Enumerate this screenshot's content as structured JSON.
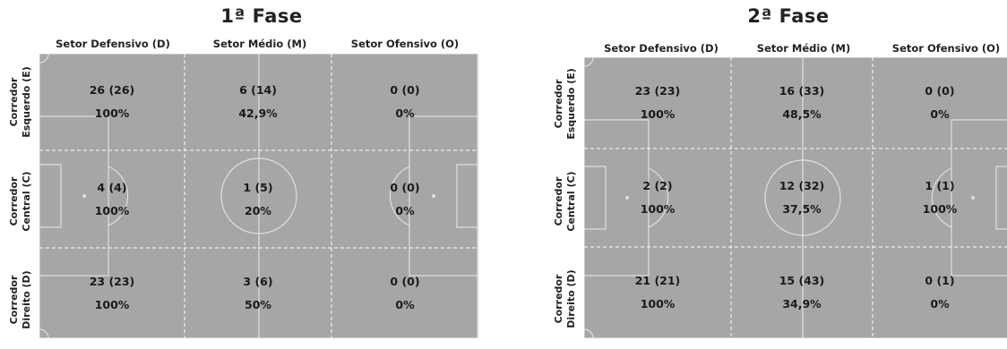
{
  "panels": [
    {
      "title": "1ª Fase",
      "column_headers": [
        "Setor Defensivo (D)",
        "Setor Médio (M)",
        "Setor Ofensivo (O)"
      ],
      "row_headers": [
        [
          "Corredor",
          "Esquerdo (E)"
        ],
        [
          "Corredor",
          "Central (C)"
        ],
        [
          "Corredor",
          "Direito (D)"
        ]
      ],
      "cells": [
        [
          {
            "count": "26 (26)",
            "pct": "100%"
          },
          {
            "count": "6 (14)",
            "pct": "42,9%"
          },
          {
            "count": "0 (0)",
            "pct": "0%"
          }
        ],
        [
          {
            "count": "4 (4)",
            "pct": "100%"
          },
          {
            "count": "1 (5)",
            "pct": "20%"
          },
          {
            "count": "0 (0)",
            "pct": "0%"
          }
        ],
        [
          {
            "count": "23 (23)",
            "pct": "100%"
          },
          {
            "count": "3 (6)",
            "pct": "50%"
          },
          {
            "count": "0 (0)",
            "pct": "0%"
          }
        ]
      ]
    },
    {
      "title": "2ª Fase",
      "column_headers": [
        "Setor Defensivo (D)",
        "Setor Médio (M)",
        "Setor Ofensivo (O)"
      ],
      "row_headers": [
        [
          "Corredor",
          "Esquerdo (E)"
        ],
        [
          "Corredor",
          "Central (C)"
        ],
        [
          "Corredor",
          "Direito (D)"
        ]
      ],
      "cells": [
        [
          {
            "count": "23 (23)",
            "pct": "100%"
          },
          {
            "count": "16 (33)",
            "pct": "48,5%"
          },
          {
            "count": "0 (0)",
            "pct": "0%"
          }
        ],
        [
          {
            "count": "2 (2)",
            "pct": "100%"
          },
          {
            "count": "12 (32)",
            "pct": "37,5%"
          },
          {
            "count": "1 (1)",
            "pct": "100%"
          }
        ],
        [
          {
            "count": "21 (21)",
            "pct": "100%"
          },
          {
            "count": "15 (43)",
            "pct": "34,9%"
          },
          {
            "count": "0 (1)",
            "pct": "0%"
          }
        ]
      ]
    }
  ],
  "colors": {
    "pitch": "#a6a6a6",
    "lines": "#e0e0e0"
  }
}
